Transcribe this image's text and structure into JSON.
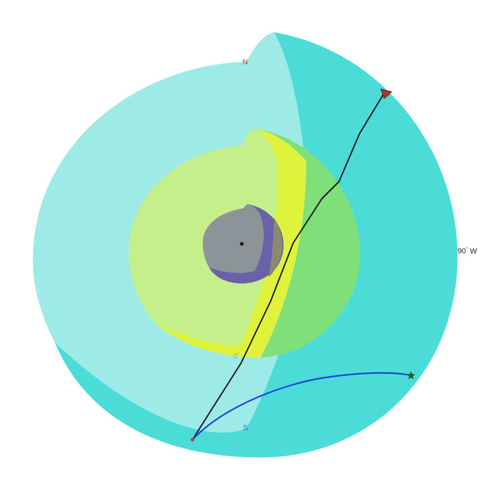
{
  "labels": {
    "north": "N",
    "south": "S",
    "meridian_zero": "0",
    "meridian_zero_deg": "°",
    "longitude_90w": "90",
    "longitude_90w_deg": "°",
    "longitude_90w_dir": "W"
  },
  "colors": {
    "mantle_front": "#9eeae6",
    "mantle_back": "#4cdcd8",
    "outer_core_front": "#c4ef8a",
    "outer_core_cut": "#dff33c",
    "outer_core_back": "#7fe07a",
    "inner_core_front": "#8c9499",
    "inner_core_back": "#6a62a8",
    "inner_core_cut": "#8a8a70",
    "ray_black": "#1a1a1a",
    "ray_blue": "#1a3fe0",
    "north_color": "#c0392b",
    "south_color": "#2f5fd8",
    "meridian_color": "#b8b84a",
    "star_color": "#1e5a3a",
    "source_color": "#c0392b"
  },
  "markers": {
    "source": "source-dot",
    "receiver_triangle": "triangle-marker",
    "receiver_star": "star-marker",
    "center": "center-dot"
  }
}
